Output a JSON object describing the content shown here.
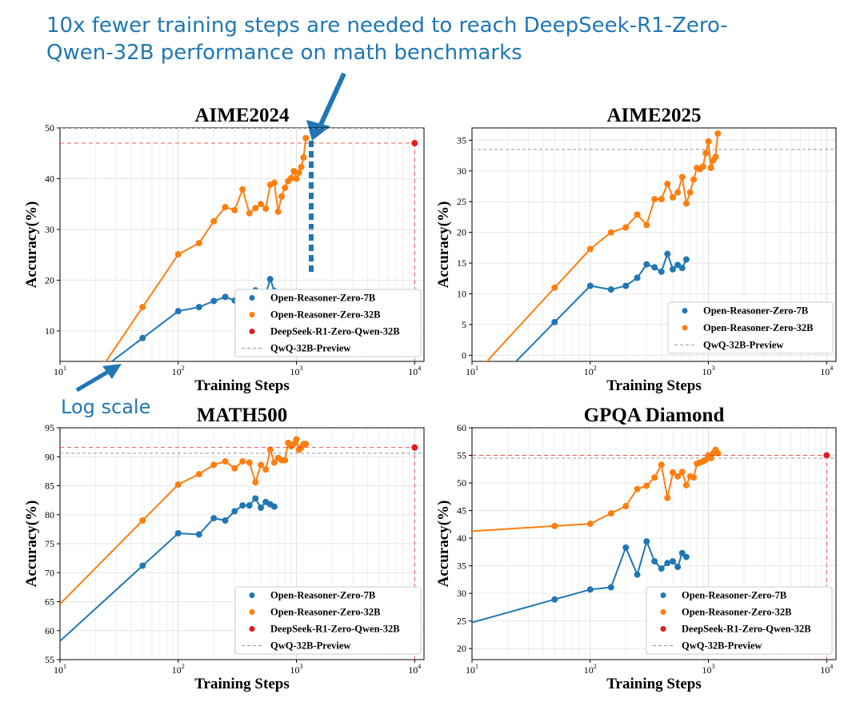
{
  "annotation": {
    "headline_line1": "10x fewer training steps are needed to reach DeepSeek-R1-Zero-",
    "headline_line2": "Qwen-32B performance on math benchmarks",
    "log_scale_label": "Log scale"
  },
  "colors": {
    "blue": "#1f77b4",
    "orange": "#ff7f0e",
    "red": "#e41a1c",
    "annotation": "#1f77b4"
  },
  "chart_data": [
    {
      "type": "line",
      "title": "AIME2024",
      "xlabel": "Training Steps",
      "ylabel": "Accuracy(%)",
      "xscale": "log",
      "xlim": [
        10,
        12000
      ],
      "ylim": [
        4,
        50
      ],
      "yticks": [
        10,
        20,
        30,
        40,
        50
      ],
      "grid": true,
      "legend_position": "lower-right",
      "series": [
        {
          "name": "Open-Reasoner-Zero-7B",
          "color": "#1f77b4",
          "x": [
            50,
            100,
            150,
            200,
            250,
            300,
            350,
            400,
            450,
            500,
            550,
            600,
            650
          ],
          "y": [
            8.6,
            13.9,
            14.7,
            15.9,
            16.7,
            16.0,
            17.5,
            17.2,
            18.0,
            17.2,
            17.4,
            20.2,
            17.9
          ]
        },
        {
          "name": "Open-Reasoner-Zero-32B",
          "color": "#ff7f0e",
          "x": [
            50,
            100,
            150,
            200,
            250,
            300,
            350,
            400,
            450,
            500,
            550,
            600,
            650,
            700,
            750,
            800,
            850,
            900,
            950,
            1000,
            1050,
            1100,
            1150,
            1200
          ],
          "y": [
            14.7,
            25.1,
            27.3,
            31.6,
            34.4,
            33.8,
            37.9,
            33.2,
            34.2,
            35.0,
            34.1,
            38.8,
            39.2,
            33.5,
            36.5,
            38.2,
            39.5,
            40.1,
            41.5,
            40.0,
            41.2,
            42.3,
            44.2,
            48.0
          ]
        },
        {
          "name": "DeepSeek-R1-Zero-Qwen-32B",
          "color": "#e41a1c",
          "x": [
            10000
          ],
          "y": [
            47.0
          ]
        },
        {
          "name": "QwQ-32B-Preview",
          "color": "#aaaaaa",
          "hline": 50.0
        }
      ]
    },
    {
      "type": "line",
      "title": "AIME2025",
      "xlabel": "Training Steps",
      "ylabel": "Accuracy(%)",
      "xscale": "log",
      "xlim": [
        10,
        12000
      ],
      "ylim": [
        -1,
        37
      ],
      "yticks": [
        0,
        5,
        10,
        15,
        20,
        25,
        30,
        35
      ],
      "grid": true,
      "legend_position": "lower-right",
      "series": [
        {
          "name": "Open-Reasoner-Zero-7B",
          "color": "#1f77b4",
          "x": [
            50,
            100,
            150,
            200,
            250,
            300,
            350,
            400,
            450,
            500,
            550,
            600,
            650
          ],
          "y": [
            5.4,
            11.3,
            10.7,
            11.3,
            12.6,
            14.8,
            14.3,
            13.6,
            16.5,
            14.0,
            14.7,
            14.2,
            15.6
          ]
        },
        {
          "name": "Open-Reasoner-Zero-32B",
          "color": "#ff7f0e",
          "x": [
            50,
            100,
            150,
            200,
            250,
            300,
            350,
            400,
            450,
            500,
            550,
            600,
            650,
            700,
            750,
            800,
            850,
            900,
            950,
            1000,
            1050,
            1100,
            1150,
            1200
          ],
          "y": [
            11.0,
            17.3,
            20.0,
            20.8,
            22.9,
            21.2,
            25.4,
            25.4,
            27.9,
            25.7,
            26.5,
            29.0,
            24.7,
            26.5,
            28.6,
            30.5,
            30.3,
            30.7,
            32.9,
            34.8,
            30.5,
            31.7,
            32.3,
            36.1
          ]
        },
        {
          "name": "QwQ-32B-Preview",
          "color": "#aaaaaa",
          "hline": 33.5
        }
      ]
    },
    {
      "type": "line",
      "title": "MATH500",
      "xlabel": "Training Steps",
      "ylabel": "Accuracy(%)",
      "xscale": "log",
      "xlim": [
        10,
        12000
      ],
      "ylim": [
        55,
        95
      ],
      "yticks": [
        55,
        60,
        65,
        70,
        75,
        80,
        85,
        90,
        95
      ],
      "grid": true,
      "legend_position": "lower-right",
      "series": [
        {
          "name": "Open-Reasoner-Zero-7B",
          "color": "#1f77b4",
          "x": [
            50,
            100,
            150,
            200,
            250,
            300,
            350,
            400,
            450,
            500,
            550,
            600,
            650
          ],
          "y": [
            71.2,
            76.8,
            76.6,
            79.4,
            79.0,
            80.6,
            81.6,
            81.6,
            82.8,
            81.2,
            82.2,
            81.8,
            81.4
          ]
        },
        {
          "name": "Open-Reasoner-Zero-32B",
          "color": "#ff7f0e",
          "x": [
            50,
            100,
            150,
            200,
            250,
            300,
            350,
            400,
            450,
            500,
            550,
            600,
            650,
            700,
            750,
            800,
            850,
            900,
            950,
            1000,
            1050,
            1100,
            1150,
            1200
          ],
          "y": [
            79.0,
            85.2,
            87.0,
            88.6,
            89.2,
            88.0,
            89.2,
            89.0,
            85.6,
            88.6,
            87.8,
            91.2,
            89.0,
            89.8,
            89.4,
            89.4,
            92.4,
            91.8,
            92.2,
            93.0,
            91.2,
            91.6,
            92.2,
            92.2
          ]
        },
        {
          "name": "DeepSeek-R1-Zero-Qwen-32B",
          "color": "#e41a1c",
          "x": [
            10000
          ],
          "y": [
            91.6
          ]
        },
        {
          "name": "QwQ-32B-Preview",
          "color": "#aaaaaa",
          "hline": 90.6
        }
      ]
    },
    {
      "type": "line",
      "title": "GPQA Diamond",
      "xlabel": "Training Steps",
      "ylabel": "Accuracy(%)",
      "xscale": "log",
      "xlim": [
        10,
        12000
      ],
      "ylim": [
        18,
        60
      ],
      "yticks": [
        20,
        25,
        30,
        35,
        40,
        45,
        50,
        55,
        60
      ],
      "grid": true,
      "legend_position": "lower-right",
      "series": [
        {
          "name": "Open-Reasoner-Zero-7B",
          "color": "#1f77b4",
          "x": [
            50,
            100,
            150,
            200,
            250,
            300,
            350,
            400,
            450,
            500,
            550,
            600,
            650
          ],
          "y": [
            28.9,
            30.7,
            31.1,
            38.3,
            33.4,
            39.4,
            35.8,
            34.5,
            35.5,
            35.8,
            34.8,
            37.3,
            36.6
          ]
        },
        {
          "name": "Open-Reasoner-Zero-32B",
          "color": "#ff7f0e",
          "x": [
            50,
            100,
            150,
            200,
            250,
            300,
            350,
            400,
            450,
            500,
            550,
            600,
            650,
            700,
            750,
            800,
            850,
            900,
            950,
            1000,
            1050,
            1100,
            1150,
            1200
          ],
          "y": [
            42.2,
            42.6,
            44.5,
            45.8,
            48.9,
            49.5,
            51.0,
            53.3,
            47.3,
            51.9,
            51.2,
            52.0,
            49.6,
            51.2,
            51.0,
            53.5,
            53.7,
            53.9,
            54.2,
            55.0,
            54.5,
            55.4,
            56.0,
            55.4
          ]
        },
        {
          "name": "DeepSeek-R1-Zero-Qwen-32B",
          "color": "#e41a1c",
          "x": [
            10000
          ],
          "y": [
            55.0
          ]
        },
        {
          "name": "QwQ-32B-Preview",
          "color": "#aaaaaa",
          "hline": 54.5
        }
      ]
    }
  ]
}
